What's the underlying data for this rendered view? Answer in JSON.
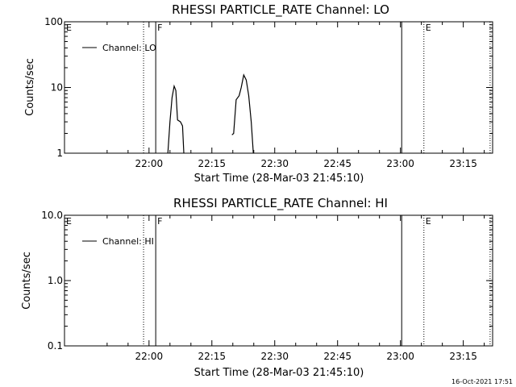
{
  "timestamp": "16-Oct-2021 17:51",
  "chart_data": [
    {
      "type": "line",
      "title": "RHESSI PARTICLE_RATE Channel: LO",
      "xlabel": "Start Time (28-Mar-03 21:45:10)",
      "ylabel": "Counts/sec",
      "y_scale": "log",
      "ylim": [
        1,
        100
      ],
      "y_ticks": [
        1,
        10,
        100
      ],
      "y_tick_labels": [
        "1",
        "10",
        "100"
      ],
      "x_range_min": [
        -5.17,
        97.0
      ],
      "x_ticks_min": [
        15,
        30,
        45,
        60,
        75,
        90
      ],
      "x_tick_labels": [
        "22:00",
        "22:15",
        "22:30",
        "22:45",
        "23:00",
        "23:15"
      ],
      "legend": {
        "label": "Channel: LO",
        "position": "top-left"
      },
      "grid": false,
      "series": [
        {
          "name": "Channel: LO",
          "segments": [
            [
              [
                19.5,
                1.0
              ],
              [
                20.0,
                3.0
              ],
              [
                20.5,
                7.0
              ],
              [
                21.0,
                10.5
              ],
              [
                21.4,
                9.0
              ],
              [
                21.8,
                3.2
              ],
              [
                22.5,
                3.0
              ],
              [
                23.0,
                2.6
              ],
              [
                23.3,
                1.0
              ]
            ],
            [
              [
                34.8,
                1.9
              ],
              [
                35.2,
                2.0
              ],
              [
                35.8,
                6.5
              ],
              [
                36.5,
                7.5
              ],
              [
                37.0,
                10.0
              ],
              [
                37.6,
                15.5
              ],
              [
                38.2,
                13.0
              ],
              [
                38.8,
                7.5
              ],
              [
                39.4,
                3.0
              ],
              [
                39.9,
                1.0
              ]
            ]
          ]
        }
      ],
      "vertical_lines": [
        {
          "x": 13.7,
          "style": "dotted",
          "label": ""
        },
        {
          "x": 16.6,
          "style": "solid",
          "label": "F"
        },
        {
          "x": 75.3,
          "style": "solid",
          "label": ""
        },
        {
          "x": 80.6,
          "style": "dotted",
          "label": "E"
        },
        {
          "x": 96.4,
          "style": "dotted",
          "label": ""
        }
      ],
      "left_edge_label": "E"
    },
    {
      "type": "line",
      "title": "RHESSI PARTICLE_RATE Channel: HI",
      "xlabel": "Start Time (28-Mar-03 21:45:10)",
      "ylabel": "Counts/sec",
      "y_scale": "log",
      "ylim": [
        0.1,
        10.0
      ],
      "y_ticks": [
        0.1,
        1.0,
        10.0
      ],
      "y_tick_labels": [
        "0.1",
        "1.0",
        "10.0"
      ],
      "x_range_min": [
        -5.17,
        97.0
      ],
      "x_ticks_min": [
        15,
        30,
        45,
        60,
        75,
        90
      ],
      "x_tick_labels": [
        "22:00",
        "22:15",
        "22:30",
        "22:45",
        "23:00",
        "23:15"
      ],
      "legend": {
        "label": "Channel: HI",
        "position": "top-left"
      },
      "grid": false,
      "series": [
        {
          "name": "Channel: HI",
          "segments": []
        }
      ],
      "vertical_lines": [
        {
          "x": 13.7,
          "style": "dotted",
          "label": ""
        },
        {
          "x": 16.6,
          "style": "solid",
          "label": "F"
        },
        {
          "x": 75.3,
          "style": "solid",
          "label": ""
        },
        {
          "x": 80.6,
          "style": "dotted",
          "label": "E"
        },
        {
          "x": 96.4,
          "style": "dotted",
          "label": ""
        }
      ],
      "left_edge_label": "E"
    }
  ]
}
